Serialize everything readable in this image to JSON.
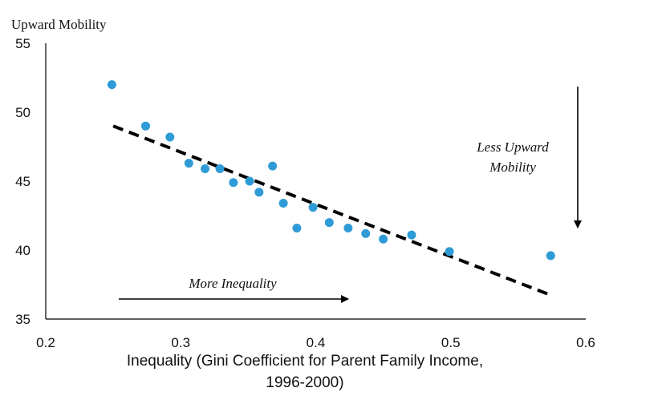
{
  "chart_data": {
    "type": "scatter",
    "ylabel": "Upward Mobility",
    "xlabel_lines": [
      "Inequality (Gini Coefficient for Parent Family Income,",
      "1996-2000)"
    ],
    "xlim": [
      0.2,
      0.6
    ],
    "ylim": [
      35,
      55
    ],
    "xticks": [
      "0.2",
      "0.3",
      "0.4",
      "0.5",
      "0.6"
    ],
    "yticks": [
      "35",
      "40",
      "45",
      "50",
      "55"
    ],
    "xtick_values": [
      0.2,
      0.3,
      0.4,
      0.5,
      0.6
    ],
    "ytick_values": [
      35,
      40,
      45,
      50,
      55
    ],
    "grid": false,
    "point_color": "#2e9bd6",
    "points": [
      {
        "x": 0.249,
        "y": 52.0
      },
      {
        "x": 0.274,
        "y": 49.0
      },
      {
        "x": 0.292,
        "y": 48.2
      },
      {
        "x": 0.306,
        "y": 46.3
      },
      {
        "x": 0.318,
        "y": 45.9
      },
      {
        "x": 0.329,
        "y": 45.9
      },
      {
        "x": 0.339,
        "y": 44.9
      },
      {
        "x": 0.351,
        "y": 45.0
      },
      {
        "x": 0.358,
        "y": 44.2
      },
      {
        "x": 0.368,
        "y": 46.1
      },
      {
        "x": 0.376,
        "y": 43.4
      },
      {
        "x": 0.386,
        "y": 41.6
      },
      {
        "x": 0.398,
        "y": 43.1
      },
      {
        "x": 0.41,
        "y": 42.0
      },
      {
        "x": 0.424,
        "y": 41.6
      },
      {
        "x": 0.437,
        "y": 41.2
      },
      {
        "x": 0.45,
        "y": 40.8
      },
      {
        "x": 0.471,
        "y": 41.1
      },
      {
        "x": 0.499,
        "y": 39.9
      },
      {
        "x": 0.574,
        "y": 39.6
      }
    ],
    "trendline": {
      "x": [
        0.25,
        0.575
      ],
      "y": [
        49.0,
        36.7
      ],
      "style": "dashed",
      "color": "#000000"
    },
    "annotations": {
      "more_inequality": "More Inequality",
      "less_upward_line1": "Less Upward",
      "less_upward_line2": "Mobility"
    }
  }
}
